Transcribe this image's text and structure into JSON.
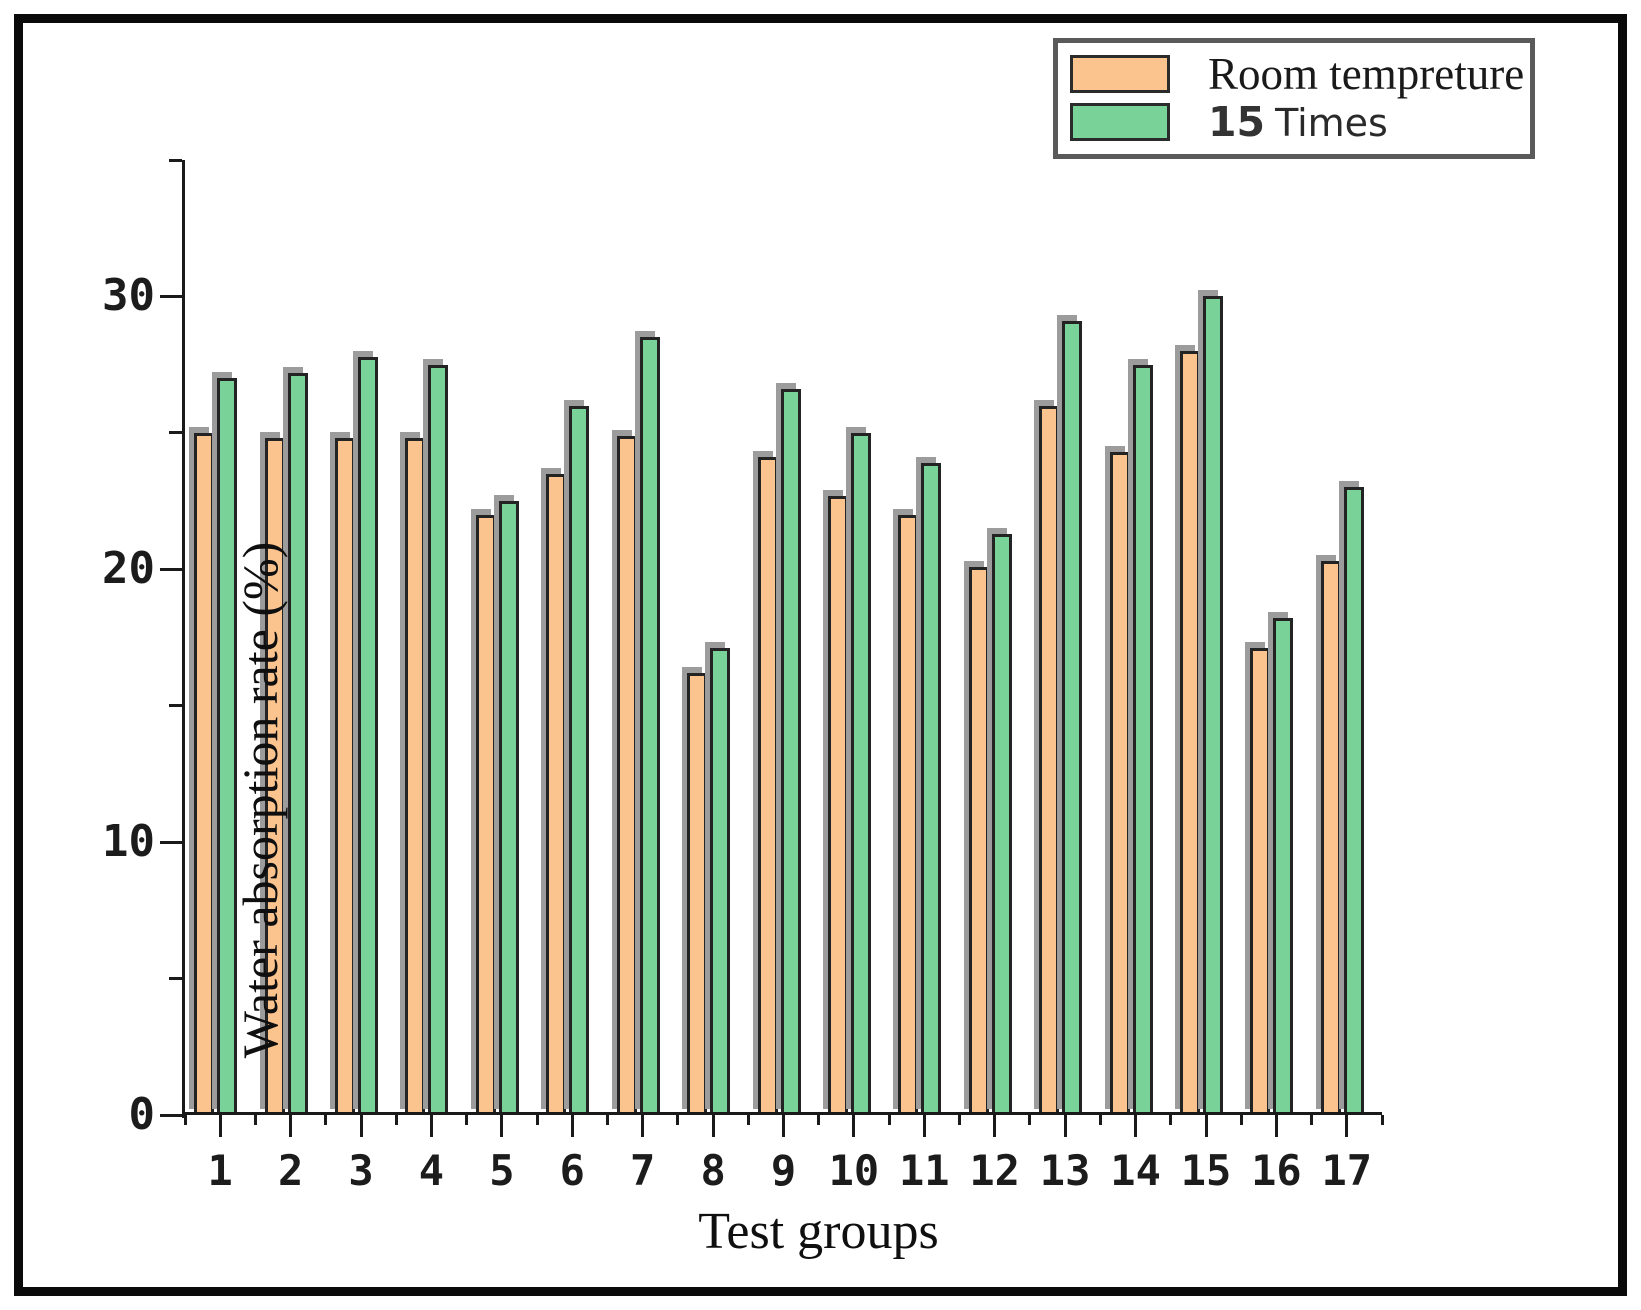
{
  "chart_data": {
    "type": "bar",
    "title": "",
    "xlabel": "Test groups",
    "ylabel": "Water absorption rate (%)",
    "categories": [
      "1",
      "2",
      "3",
      "4",
      "5",
      "6",
      "7",
      "8",
      "9",
      "10",
      "11",
      "12",
      "13",
      "14",
      "15",
      "16",
      "17"
    ],
    "series": [
      {
        "name": "Room tempreture",
        "color": "#FBC48E",
        "values": [
          25.0,
          24.8,
          24.8,
          24.8,
          22.0,
          23.5,
          24.9,
          16.2,
          24.1,
          22.7,
          22.0,
          20.1,
          26.0,
          24.3,
          28.0,
          17.1,
          20.3
        ]
      },
      {
        "name": "15 Times",
        "color": "#79D399",
        "values": [
          27.0,
          27.2,
          27.8,
          27.5,
          22.5,
          26.0,
          28.5,
          17.1,
          26.6,
          25.0,
          23.9,
          21.3,
          29.1,
          27.5,
          30.0,
          18.2,
          23.0
        ]
      }
    ],
    "ylim": [
      0,
      35
    ],
    "yticks_major": [
      0,
      10,
      20,
      30
    ],
    "yticks_minor": [
      5,
      15,
      25,
      35
    ],
    "grid": false,
    "legend_position": "top-right"
  },
  "legend": {
    "items": [
      {
        "label": "Room tempreture",
        "swatch_color": "#FBC48E"
      },
      {
        "label": "15 Times",
        "label_number": "15",
        "label_text": "Times",
        "swatch_color": "#79D399"
      }
    ]
  },
  "colors": {
    "bar_orange": "#FBC48E",
    "bar_green": "#79D399",
    "bar_border": "#232323",
    "bar_shadow": "#9c9c9c",
    "axis": "#1a1a1a",
    "figure_border": "#0a0a0a",
    "legend_border": "#5a5a5a",
    "background": "#ffffff"
  }
}
